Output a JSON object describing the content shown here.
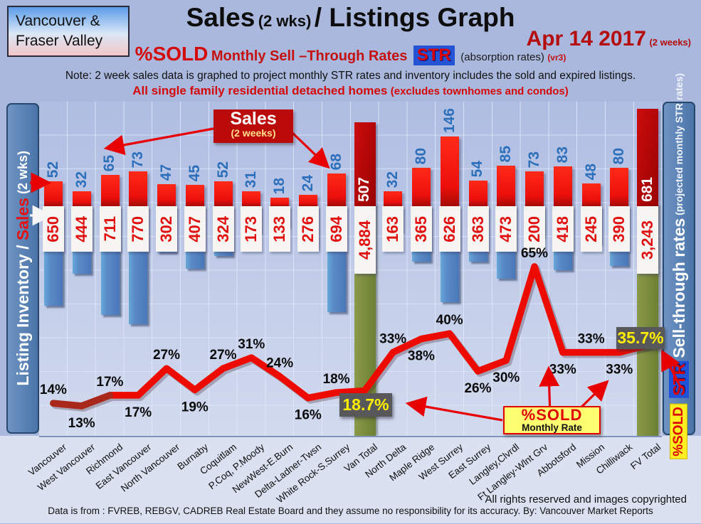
{
  "header": {
    "region_line1": "Vancouver &",
    "region_line2": "Fraser Valley",
    "title_main": "Sales",
    "title_paren": "(2 wks)",
    "title_rest": "/ Listings Graph",
    "date": "Apr 14 2017",
    "date_note": "(2 weeks)",
    "pct_sold": "%SOLD",
    "str_rates": "Monthly Sell –Through Rates",
    "str_badge": "STR",
    "absorption": "(absorption rates)",
    "version": "(vr3)",
    "note": "Note: 2 week sales data is graphed to project monthly STR rates and inventory includes the sold and expired listings.",
    "subtitle": "All single family residential detached homes",
    "subtitle_paren": "(excludes townhomes and condos)"
  },
  "left_axis": {
    "part_white": "Listing Inventory / ",
    "part_red": "Sales",
    "part_white2": " (2  wks)"
  },
  "right_axis": {
    "main": "Sell-through rates",
    "sub": " (projected monthly STR rates)",
    "str_chip": "STR",
    "sold_chip": "%SOLD"
  },
  "annotations": {
    "sales_legend_title": "Sales",
    "sales_legend_sub": "(2 weeks)",
    "van_total_rate": "18.7%",
    "fv_total_rate": "35.7%",
    "sold_box_line1": "%SOLD",
    "sold_box_line2": "Monthly Rate"
  },
  "footer": {
    "rights": "All rights reserved and  images copyrighted",
    "source": "Data is from : FVREB, REBGV, CADREB Real Estate Board and they assume no responsibility for its accuracy. By: Vancouver Market Reports"
  },
  "chart_data": {
    "type": "bar+line combo",
    "categories": [
      "Vancouver",
      "West Vancouver",
      "Richmond",
      "East Vancouver",
      "North Vancouver",
      "Burnaby",
      "Coquitlam",
      "P.Coq, P.Moody",
      "NewWest-E.Burn",
      "Delta-Ladner-Twsn",
      "White Rock-S.Surrey",
      "Van Total",
      "North Delta",
      "Maple Ridge",
      "West Surrey",
      "East Surrey",
      "Langley,Clvrdl",
      "Ft Langley-Wlnt Grv",
      "Abbotsford",
      "Mission",
      "Chilliwack",
      "FV Total"
    ],
    "series": [
      {
        "name": "Sales (2 weeks)",
        "values": [
          52,
          32,
          65,
          73,
          47,
          45,
          52,
          31,
          18,
          24,
          68,
          507,
          32,
          80,
          146,
          54,
          85,
          73,
          83,
          48,
          80,
          681
        ]
      },
      {
        "name": "Listing Inventory (includes sold and expired)",
        "values": [
          650,
          444,
          711,
          770,
          302,
          407,
          324,
          173,
          133,
          276,
          694,
          4884,
          163,
          365,
          626,
          363,
          473,
          200,
          418,
          245,
          390,
          3243
        ]
      },
      {
        "name": "%SOLD Monthly Rate (STR)",
        "values": [
          14,
          13,
          17,
          17,
          27,
          19,
          27,
          31,
          24,
          16,
          18,
          18.7,
          33,
          38,
          40,
          26,
          30,
          65,
          33,
          33,
          33,
          35.7
        ]
      }
    ],
    "totals_indices": [
      11,
      21
    ],
    "legend_position": "in-plot annotations",
    "grid": true,
    "colors": {
      "sales_bar": "#ee1111",
      "totals_sales_bar": "#b00606",
      "inventory_bar": "#5b8cc8",
      "totals_inventory_bar": "#7d8f3f",
      "line": "#ee0000",
      "sales_label": "#2c6fba",
      "inventory_label": "#e01010",
      "highlight_bg": "#58585a",
      "highlight_text": "#ffee00"
    }
  }
}
